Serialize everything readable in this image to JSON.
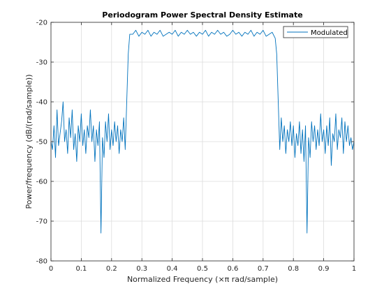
{
  "chart_data": {
    "type": "line",
    "title": "Periodogram Power Spectral Density Estimate",
    "xlabel": "Normalized Frequency  (×π rad/sample)",
    "ylabel": "Power/frequency (dB/(rad/sample))",
    "xlim": [
      0,
      1
    ],
    "ylim": [
      -80,
      -20
    ],
    "xticks": [
      0,
      0.1,
      0.2,
      0.3,
      0.4,
      0.5,
      0.6,
      0.7,
      0.8,
      0.9,
      1
    ],
    "xtick_labels": [
      "0",
      "0.1",
      "0.2",
      "0.3",
      "0.4",
      "0.5",
      "0.6",
      "0.7",
      "0.8",
      "0.9",
      "1"
    ],
    "yticks": [
      -20,
      -30,
      -40,
      -50,
      -60,
      -70,
      -80
    ],
    "ytick_labels": [
      "-20",
      "-30",
      "-40",
      "-50",
      "-60",
      "-70",
      "-80"
    ],
    "grid": true,
    "legend_position": "top-right",
    "series": [
      {
        "name": "Modulated",
        "color": "#0072bd",
        "x": [
          0,
          0.005,
          0.01,
          0.015,
          0.02,
          0.025,
          0.03,
          0.035,
          0.04,
          0.045,
          0.05,
          0.055,
          0.06,
          0.065,
          0.07,
          0.075,
          0.08,
          0.085,
          0.09,
          0.095,
          0.1,
          0.105,
          0.11,
          0.115,
          0.12,
          0.125,
          0.13,
          0.135,
          0.14,
          0.145,
          0.15,
          0.155,
          0.16,
          0.165,
          0.17,
          0.175,
          0.18,
          0.185,
          0.19,
          0.195,
          0.2,
          0.205,
          0.21,
          0.215,
          0.22,
          0.225,
          0.23,
          0.235,
          0.24,
          0.245,
          0.25,
          0.255,
          0.26,
          0.27,
          0.28,
          0.29,
          0.3,
          0.31,
          0.32,
          0.33,
          0.34,
          0.35,
          0.36,
          0.37,
          0.38,
          0.39,
          0.4,
          0.41,
          0.42,
          0.43,
          0.44,
          0.45,
          0.46,
          0.47,
          0.48,
          0.49,
          0.5,
          0.51,
          0.52,
          0.53,
          0.54,
          0.55,
          0.56,
          0.57,
          0.58,
          0.59,
          0.6,
          0.61,
          0.62,
          0.63,
          0.64,
          0.65,
          0.66,
          0.67,
          0.68,
          0.69,
          0.7,
          0.71,
          0.72,
          0.73,
          0.74,
          0.745,
          0.75,
          0.755,
          0.76,
          0.765,
          0.77,
          0.775,
          0.78,
          0.785,
          0.79,
          0.795,
          0.8,
          0.805,
          0.81,
          0.815,
          0.82,
          0.825,
          0.83,
          0.835,
          0.84,
          0.845,
          0.85,
          0.855,
          0.86,
          0.865,
          0.87,
          0.875,
          0.88,
          0.885,
          0.89,
          0.895,
          0.9,
          0.905,
          0.91,
          0.915,
          0.92,
          0.925,
          0.93,
          0.935,
          0.94,
          0.945,
          0.95,
          0.955,
          0.96,
          0.965,
          0.97,
          0.975,
          0.98,
          0.985,
          0.99,
          0.995,
          1
        ],
        "values": [
          -50,
          -52,
          -46,
          -54,
          -42,
          -51,
          -48,
          -45,
          -40,
          -50,
          -47,
          -53,
          -44,
          -49,
          -42,
          -52,
          -48,
          -55,
          -46,
          -50,
          -43,
          -51,
          -47,
          -53,
          -46,
          -49,
          -42,
          -50,
          -46,
          -55,
          -47,
          -51,
          -45,
          -73,
          -49,
          -54,
          -45,
          -50,
          -43,
          -52,
          -47,
          -51,
          -45,
          -50,
          -46,
          -53,
          -47,
          -50,
          -44,
          -52,
          -40,
          -28,
          -23,
          -23,
          -22,
          -23.5,
          -22.5,
          -23,
          -22,
          -23.5,
          -22.5,
          -23,
          -22,
          -23.5,
          -23,
          -22.5,
          -23,
          -22,
          -23.5,
          -22.5,
          -23,
          -22,
          -23,
          -22.5,
          -23.5,
          -22.5,
          -23,
          -22,
          -23.5,
          -22.5,
          -23,
          -22,
          -23,
          -22.5,
          -23.5,
          -23,
          -22,
          -23,
          -22.5,
          -23.5,
          -22.5,
          -23,
          -22,
          -23.5,
          -22.5,
          -23,
          -22,
          -23.5,
          -23,
          -22.5,
          -24,
          -28,
          -40,
          -52,
          -44,
          -50,
          -46,
          -53,
          -47,
          -50,
          -45,
          -51,
          -46,
          -54,
          -48,
          -51,
          -45,
          -53,
          -47,
          -55,
          -46,
          -73,
          -49,
          -54,
          -45,
          -50,
          -46,
          -52,
          -47,
          -51,
          -43,
          -50,
          -47,
          -53,
          -46,
          -51,
          -44,
          -56,
          -48,
          -50,
          -43,
          -52,
          -47,
          -49,
          -44,
          -53,
          -45,
          -50,
          -46,
          -51,
          -49,
          -52,
          -50
        ]
      }
    ]
  }
}
